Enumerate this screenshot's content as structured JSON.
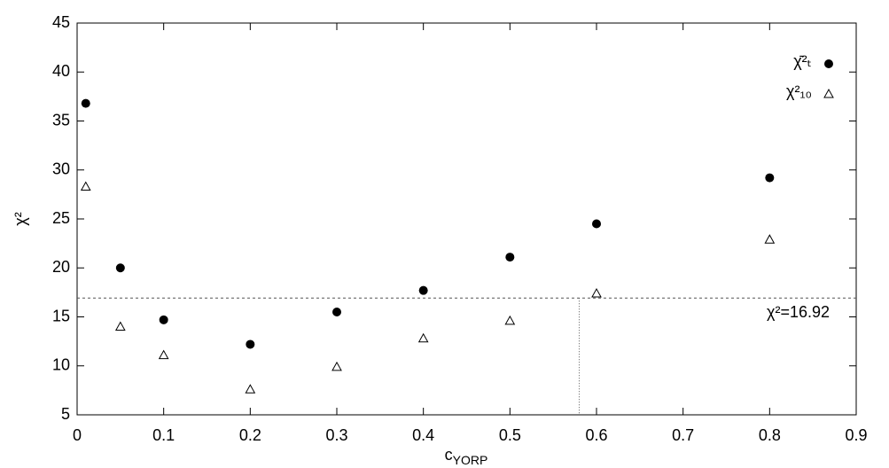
{
  "chart_data": {
    "type": "scatter",
    "x_label": "c",
    "x_label_sub": "YORP",
    "y_label": "χ²",
    "xlim": [
      0,
      0.9
    ],
    "xticks": [
      0,
      0.1,
      0.2,
      0.3,
      0.4,
      0.5,
      0.6,
      0.7,
      0.8,
      0.9
    ],
    "ylim": [
      5,
      45
    ],
    "yticks": [
      5,
      10,
      15,
      20,
      25,
      30,
      35,
      40,
      45
    ],
    "grid": false,
    "legend": "top-right",
    "series": [
      {
        "name": "χ̄²ₜ",
        "marker": "circle",
        "color": "#000000",
        "x": [
          0.01,
          0.05,
          0.1,
          0.2,
          0.3,
          0.4,
          0.5,
          0.6,
          0.8
        ],
        "values": [
          36.8,
          20.0,
          14.7,
          12.2,
          15.5,
          17.7,
          21.1,
          24.5,
          29.2
        ]
      },
      {
        "name": "χ²₁₀",
        "marker": "triangle",
        "color": "#000000",
        "x": [
          0.01,
          0.05,
          0.1,
          0.2,
          0.3,
          0.4,
          0.5,
          0.6,
          0.8
        ],
        "values": [
          28.3,
          14.0,
          11.1,
          7.6,
          9.9,
          12.8,
          14.6,
          17.4,
          22.9
        ]
      }
    ],
    "reference_line": {
      "y": 16.92,
      "label": "χ²=16.92",
      "x_cross": 0.58
    }
  }
}
